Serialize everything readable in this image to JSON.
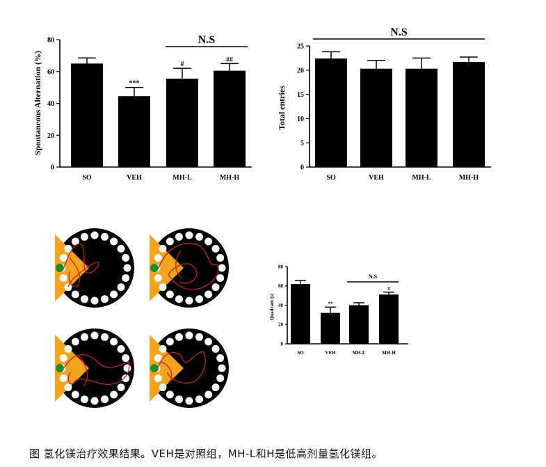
{
  "chart_data": [
    {
      "type": "bar",
      "categories": [
        "SO",
        "VEH",
        "MH-L",
        "MH-H"
      ],
      "values": [
        65,
        44.5,
        55.5,
        60.5
      ],
      "errors": [
        3.5,
        5.5,
        6.5,
        4.5
      ],
      "value_labels": [
        "",
        "***",
        "#",
        "##"
      ],
      "ylabel": "Spontaneous Alternation (%)",
      "ylim": [
        0,
        80
      ],
      "yticks": [
        "0",
        "20",
        "40",
        "60",
        "80"
      ],
      "annotation": "N.S",
      "bar_color": "#000000"
    },
    {
      "type": "bar",
      "categories": [
        "SO",
        "VEH",
        "MH-L",
        "MH-H"
      ],
      "values": [
        22.4,
        20.3,
        20.3,
        21.7
      ],
      "errors": [
        1.4,
        1.7,
        2.2,
        1.0
      ],
      "value_labels": [
        "",
        "",
        "",
        ""
      ],
      "ylabel": "Total entries",
      "ylim": [
        0,
        25
      ],
      "yticks": [
        "0",
        "5",
        "10",
        "15",
        "20",
        "25"
      ],
      "annotation": "N.S",
      "bar_color": "#000000"
    },
    {
      "type": "bar",
      "categories": [
        "SO",
        "VEH",
        "MH-L",
        "MH-H"
      ],
      "values": [
        62,
        32,
        40,
        51
      ],
      "errors": [
        3.5,
        6,
        2.5,
        2.5
      ],
      "value_labels": [
        "",
        "**",
        "",
        "#"
      ],
      "ylabel": "Quadrant (s)",
      "ylim": [
        0,
        80
      ],
      "yticks": [
        "0",
        "20",
        "40",
        "60",
        "80"
      ],
      "annotation": "N.S",
      "bar_color": "#000000"
    }
  ],
  "maze_colors": {
    "platform": "#ffffff",
    "arena": "#000000",
    "target_quadrant": "#f5a31a",
    "start": "#1e8c2e",
    "path": "#c81e1e"
  },
  "caption": "图 氢化镁治疗效果结果。VEH是对照组，MH-L和H是低高剂量氢化镁组。"
}
